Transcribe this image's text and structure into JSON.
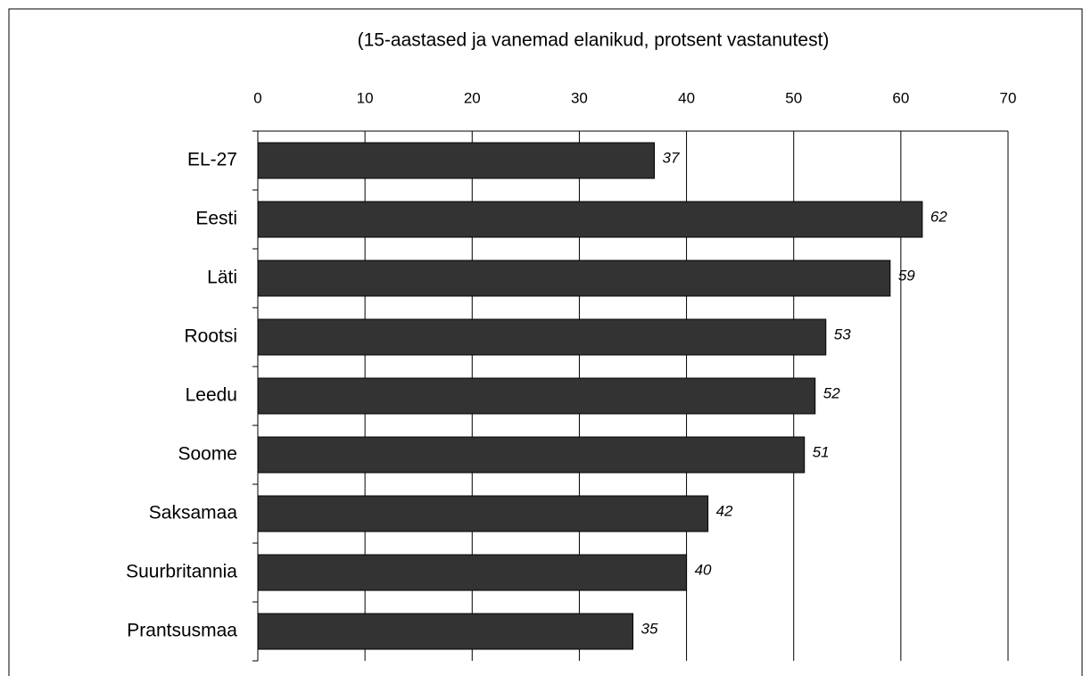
{
  "chart_data": {
    "type": "bar",
    "orientation": "horizontal",
    "title": "(15-aastased ja vanemad elanikud, protsent vastanutest)",
    "categories": [
      "EL-27",
      "Eesti",
      "Läti",
      "Rootsi",
      "Leedu",
      "Soome",
      "Saksamaa",
      "Suurbritannia",
      "Prantsusmaa"
    ],
    "values": [
      37,
      62,
      59,
      53,
      52,
      51,
      42,
      40,
      35
    ],
    "color": "#333333",
    "xlim": [
      0,
      70
    ],
    "xticks": [
      0,
      10,
      20,
      30,
      40,
      50,
      60,
      70
    ],
    "grid": true
  }
}
